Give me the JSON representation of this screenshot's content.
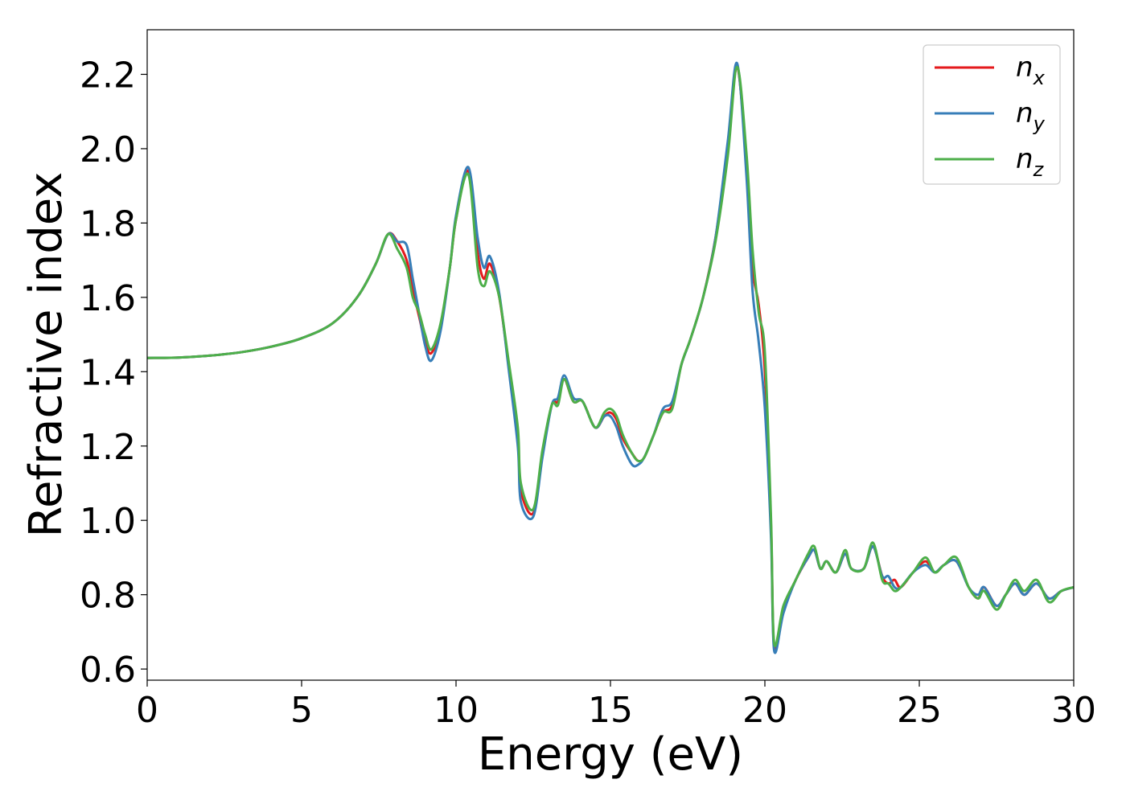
{
  "chart_data": {
    "type": "line",
    "title": "",
    "xlabel": "Energy (eV)",
    "ylabel": "Refractive index",
    "xlim": [
      0,
      30
    ],
    "ylim": [
      0.57,
      2.32
    ],
    "xticks": [
      0,
      5,
      10,
      15,
      20,
      25,
      30
    ],
    "xtick_labels": [
      "0",
      "5",
      "10",
      "15",
      "20",
      "25",
      "30"
    ],
    "yticks": [
      0.6,
      0.8,
      1.0,
      1.2,
      1.4,
      1.6,
      1.8,
      2.0,
      2.2
    ],
    "ytick_labels": [
      "0.6",
      "0.8",
      "1.0",
      "1.2",
      "1.4",
      "1.6",
      "1.8",
      "2.0",
      "2.2"
    ],
    "grid": false,
    "legend_position": "top-right",
    "series": [
      {
        "name": "n_x",
        "legend_base": "n",
        "legend_sub": "x",
        "color": "#e41a1c",
        "points": [
          [
            0,
            1.437
          ],
          [
            1,
            1.438
          ],
          [
            2,
            1.443
          ],
          [
            3,
            1.452
          ],
          [
            4,
            1.467
          ],
          [
            5,
            1.49
          ],
          [
            6,
            1.53
          ],
          [
            6.8,
            1.6
          ],
          [
            7.4,
            1.69
          ],
          [
            7.8,
            1.77
          ],
          [
            8.1,
            1.75
          ],
          [
            8.4,
            1.7
          ],
          [
            8.6,
            1.62
          ],
          [
            8.8,
            1.55
          ],
          [
            9.0,
            1.48
          ],
          [
            9.2,
            1.45
          ],
          [
            9.5,
            1.52
          ],
          [
            9.8,
            1.68
          ],
          [
            10.0,
            1.81
          ],
          [
            10.4,
            1.94
          ],
          [
            10.7,
            1.72
          ],
          [
            10.9,
            1.65
          ],
          [
            11.1,
            1.69
          ],
          [
            11.4,
            1.6
          ],
          [
            11.7,
            1.42
          ],
          [
            12.0,
            1.22
          ],
          [
            12.1,
            1.08
          ],
          [
            12.5,
            1.02
          ],
          [
            12.8,
            1.18
          ],
          [
            13.1,
            1.31
          ],
          [
            13.3,
            1.32
          ],
          [
            13.5,
            1.38
          ],
          [
            13.8,
            1.32
          ],
          [
            14.1,
            1.32
          ],
          [
            14.5,
            1.25
          ],
          [
            14.8,
            1.28
          ],
          [
            15.0,
            1.29
          ],
          [
            15.2,
            1.27
          ],
          [
            15.4,
            1.22
          ],
          [
            15.7,
            1.18
          ],
          [
            15.9,
            1.16
          ],
          [
            16.1,
            1.17
          ],
          [
            16.4,
            1.23
          ],
          [
            16.7,
            1.29
          ],
          [
            17.0,
            1.31
          ],
          [
            17.3,
            1.42
          ],
          [
            17.6,
            1.49
          ],
          [
            18.0,
            1.6
          ],
          [
            18.4,
            1.76
          ],
          [
            18.8,
            2.0
          ],
          [
            19.1,
            2.22
          ],
          [
            19.4,
            1.96
          ],
          [
            19.6,
            1.68
          ],
          [
            19.8,
            1.58
          ],
          [
            20.0,
            1.4
          ],
          [
            20.2,
            0.98
          ],
          [
            20.3,
            0.66
          ],
          [
            20.6,
            0.76
          ],
          [
            21.0,
            0.84
          ],
          [
            21.4,
            0.9
          ],
          [
            21.6,
            0.92
          ],
          [
            21.8,
            0.87
          ],
          [
            22.0,
            0.89
          ],
          [
            22.3,
            0.86
          ],
          [
            22.6,
            0.91
          ],
          [
            22.8,
            0.87
          ],
          [
            23.2,
            0.87
          ],
          [
            23.5,
            0.93
          ],
          [
            23.8,
            0.85
          ],
          [
            24.0,
            0.83
          ],
          [
            24.2,
            0.84
          ],
          [
            24.4,
            0.82
          ],
          [
            24.8,
            0.86
          ],
          [
            25.2,
            0.89
          ],
          [
            25.5,
            0.86
          ],
          [
            25.8,
            0.88
          ],
          [
            26.2,
            0.89
          ],
          [
            26.6,
            0.82
          ],
          [
            26.9,
            0.79
          ],
          [
            27.1,
            0.82
          ],
          [
            27.5,
            0.77
          ],
          [
            27.8,
            0.8
          ],
          [
            28.1,
            0.83
          ],
          [
            28.4,
            0.8
          ],
          [
            28.8,
            0.83
          ],
          [
            29.2,
            0.79
          ],
          [
            29.6,
            0.81
          ],
          [
            30,
            0.82
          ]
        ]
      },
      {
        "name": "n_y",
        "legend_base": "n",
        "legend_sub": "y",
        "color": "#377eb8",
        "points": [
          [
            0,
            1.437
          ],
          [
            1,
            1.438
          ],
          [
            2,
            1.443
          ],
          [
            3,
            1.452
          ],
          [
            4,
            1.467
          ],
          [
            5,
            1.49
          ],
          [
            6,
            1.53
          ],
          [
            6.8,
            1.6
          ],
          [
            7.4,
            1.69
          ],
          [
            7.8,
            1.77
          ],
          [
            8.1,
            1.75
          ],
          [
            8.4,
            1.74
          ],
          [
            8.6,
            1.65
          ],
          [
            8.8,
            1.56
          ],
          [
            9.0,
            1.47
          ],
          [
            9.2,
            1.43
          ],
          [
            9.5,
            1.51
          ],
          [
            9.8,
            1.68
          ],
          [
            10.0,
            1.82
          ],
          [
            10.4,
            1.95
          ],
          [
            10.7,
            1.76
          ],
          [
            10.9,
            1.68
          ],
          [
            11.1,
            1.71
          ],
          [
            11.4,
            1.61
          ],
          [
            11.7,
            1.41
          ],
          [
            12.0,
            1.2
          ],
          [
            12.1,
            1.05
          ],
          [
            12.5,
            1.01
          ],
          [
            12.8,
            1.17
          ],
          [
            13.1,
            1.31
          ],
          [
            13.3,
            1.33
          ],
          [
            13.5,
            1.39
          ],
          [
            13.8,
            1.33
          ],
          [
            14.1,
            1.32
          ],
          [
            14.5,
            1.25
          ],
          [
            14.8,
            1.28
          ],
          [
            15.0,
            1.28
          ],
          [
            15.2,
            1.25
          ],
          [
            15.4,
            1.2
          ],
          [
            15.7,
            1.15
          ],
          [
            15.9,
            1.15
          ],
          [
            16.1,
            1.17
          ],
          [
            16.4,
            1.23
          ],
          [
            16.7,
            1.3
          ],
          [
            17.0,
            1.32
          ],
          [
            17.3,
            1.42
          ],
          [
            17.6,
            1.49
          ],
          [
            18.0,
            1.6
          ],
          [
            18.4,
            1.76
          ],
          [
            18.8,
            2.02
          ],
          [
            19.1,
            2.23
          ],
          [
            19.4,
            1.93
          ],
          [
            19.6,
            1.62
          ],
          [
            19.8,
            1.48
          ],
          [
            20.0,
            1.3
          ],
          [
            20.2,
            0.95
          ],
          [
            20.3,
            0.65
          ],
          [
            20.6,
            0.75
          ],
          [
            21.0,
            0.84
          ],
          [
            21.4,
            0.9
          ],
          [
            21.6,
            0.92
          ],
          [
            21.8,
            0.87
          ],
          [
            22.0,
            0.89
          ],
          [
            22.3,
            0.86
          ],
          [
            22.6,
            0.91
          ],
          [
            22.8,
            0.87
          ],
          [
            23.2,
            0.87
          ],
          [
            23.5,
            0.93
          ],
          [
            23.8,
            0.85
          ],
          [
            24.0,
            0.85
          ],
          [
            24.2,
            0.82
          ],
          [
            24.4,
            0.82
          ],
          [
            24.8,
            0.86
          ],
          [
            25.2,
            0.88
          ],
          [
            25.5,
            0.86
          ],
          [
            25.8,
            0.88
          ],
          [
            26.2,
            0.89
          ],
          [
            26.6,
            0.82
          ],
          [
            26.9,
            0.8
          ],
          [
            27.1,
            0.82
          ],
          [
            27.5,
            0.77
          ],
          [
            27.8,
            0.8
          ],
          [
            28.1,
            0.83
          ],
          [
            28.4,
            0.8
          ],
          [
            28.8,
            0.83
          ],
          [
            29.2,
            0.79
          ],
          [
            29.6,
            0.81
          ],
          [
            30,
            0.82
          ]
        ]
      },
      {
        "name": "n_z",
        "legend_base": "n",
        "legend_sub": "z",
        "color": "#4daf4a",
        "points": [
          [
            0,
            1.437
          ],
          [
            1,
            1.438
          ],
          [
            2,
            1.443
          ],
          [
            3,
            1.452
          ],
          [
            4,
            1.467
          ],
          [
            5,
            1.49
          ],
          [
            6,
            1.53
          ],
          [
            6.8,
            1.6
          ],
          [
            7.4,
            1.69
          ],
          [
            7.8,
            1.77
          ],
          [
            8.1,
            1.73
          ],
          [
            8.4,
            1.68
          ],
          [
            8.6,
            1.6
          ],
          [
            8.8,
            1.56
          ],
          [
            9.0,
            1.5
          ],
          [
            9.2,
            1.46
          ],
          [
            9.5,
            1.53
          ],
          [
            9.8,
            1.68
          ],
          [
            10.0,
            1.81
          ],
          [
            10.4,
            1.93
          ],
          [
            10.7,
            1.68
          ],
          [
            10.9,
            1.63
          ],
          [
            11.1,
            1.67
          ],
          [
            11.4,
            1.6
          ],
          [
            11.7,
            1.43
          ],
          [
            12.0,
            1.25
          ],
          [
            12.1,
            1.1
          ],
          [
            12.5,
            1.03
          ],
          [
            12.8,
            1.19
          ],
          [
            13.1,
            1.31
          ],
          [
            13.3,
            1.31
          ],
          [
            13.5,
            1.38
          ],
          [
            13.8,
            1.32
          ],
          [
            14.1,
            1.32
          ],
          [
            14.5,
            1.25
          ],
          [
            14.8,
            1.29
          ],
          [
            15.0,
            1.3
          ],
          [
            15.2,
            1.28
          ],
          [
            15.4,
            1.23
          ],
          [
            15.7,
            1.18
          ],
          [
            15.9,
            1.16
          ],
          [
            16.1,
            1.17
          ],
          [
            16.4,
            1.23
          ],
          [
            16.7,
            1.29
          ],
          [
            17.0,
            1.3
          ],
          [
            17.3,
            1.42
          ],
          [
            17.6,
            1.49
          ],
          [
            18.0,
            1.6
          ],
          [
            18.4,
            1.75
          ],
          [
            18.8,
            1.98
          ],
          [
            19.1,
            2.22
          ],
          [
            19.4,
            1.99
          ],
          [
            19.6,
            1.73
          ],
          [
            19.8,
            1.56
          ],
          [
            20.0,
            1.45
          ],
          [
            20.2,
            1.0
          ],
          [
            20.3,
            0.67
          ],
          [
            20.6,
            0.77
          ],
          [
            21.0,
            0.84
          ],
          [
            21.4,
            0.91
          ],
          [
            21.6,
            0.93
          ],
          [
            21.8,
            0.87
          ],
          [
            22.0,
            0.89
          ],
          [
            22.3,
            0.86
          ],
          [
            22.6,
            0.92
          ],
          [
            22.8,
            0.87
          ],
          [
            23.2,
            0.87
          ],
          [
            23.5,
            0.94
          ],
          [
            23.8,
            0.84
          ],
          [
            24.0,
            0.83
          ],
          [
            24.2,
            0.81
          ],
          [
            24.4,
            0.82
          ],
          [
            24.8,
            0.86
          ],
          [
            25.2,
            0.9
          ],
          [
            25.5,
            0.86
          ],
          [
            25.8,
            0.88
          ],
          [
            26.2,
            0.9
          ],
          [
            26.6,
            0.82
          ],
          [
            26.9,
            0.79
          ],
          [
            27.1,
            0.81
          ],
          [
            27.5,
            0.76
          ],
          [
            27.8,
            0.8
          ],
          [
            28.1,
            0.84
          ],
          [
            28.4,
            0.81
          ],
          [
            28.8,
            0.84
          ],
          [
            29.2,
            0.78
          ],
          [
            29.6,
            0.81
          ],
          [
            30,
            0.82
          ]
        ]
      }
    ]
  }
}
